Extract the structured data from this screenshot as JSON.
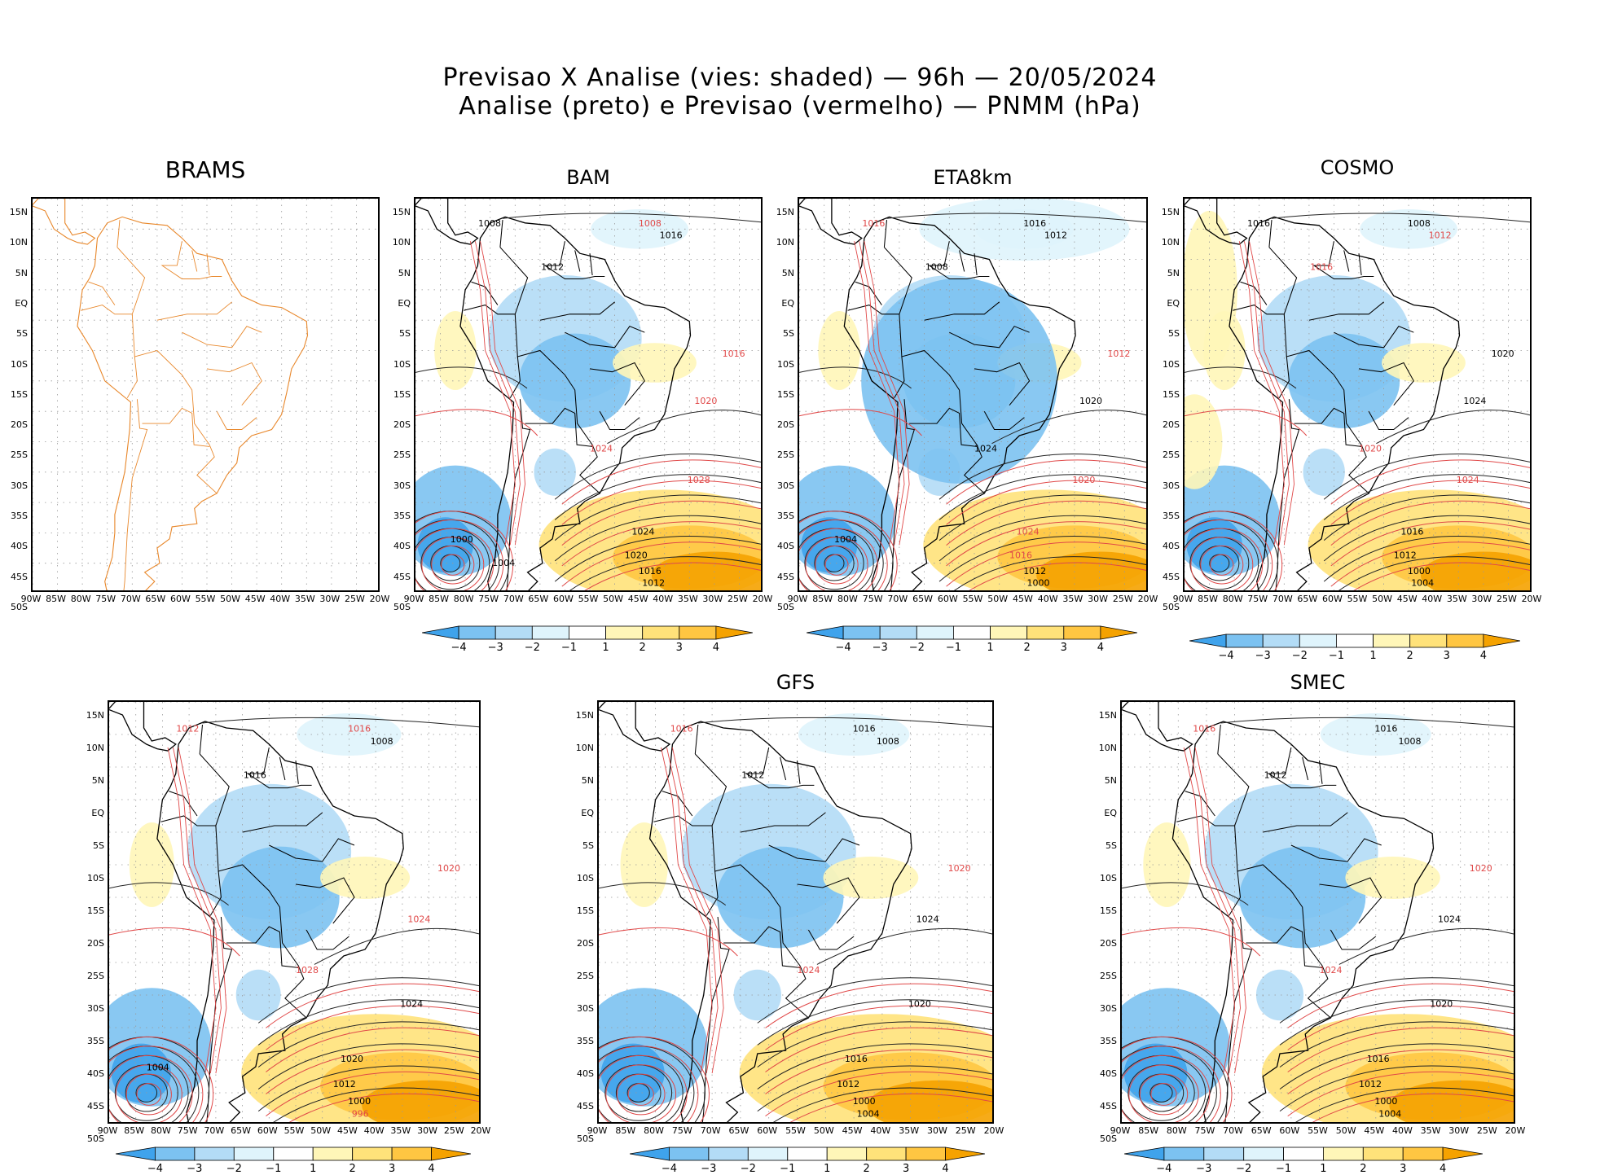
{
  "title": {
    "line1": "Previsao X Analise (vies: shaded) — 96h — 20/05/2024",
    "line2": "Analise (preto) e Previsao (vermelho) — PNMM (hPa)"
  },
  "axes": {
    "lat_labels": [
      "15N",
      "10N",
      "5N",
      "EQ",
      "5S",
      "10S",
      "15S",
      "20S",
      "25S",
      "30S",
      "35S",
      "40S",
      "45S",
      "50S"
    ],
    "lon_labels": [
      "90W",
      "85W",
      "80W",
      "75W",
      "70W",
      "65W",
      "60W",
      "55W",
      "50W",
      "45W",
      "40W",
      "35W",
      "30W",
      "25W",
      "20W"
    ]
  },
  "colorbar": {
    "labels": [
      "−4",
      "−3",
      "−2",
      "−1",
      "1",
      "2",
      "3",
      "4"
    ],
    "colors": [
      "#3fa3ec",
      "#7cc2f1",
      "#b3dcf6",
      "#dff4fc",
      "#ffffff",
      "#fff6b8",
      "#ffe27a",
      "#ffc642",
      "#f5a200"
    ]
  },
  "panels": [
    {
      "name": "BRAMS",
      "has_colorbar": false,
      "labels": []
    },
    {
      "name": "BAM",
      "has_colorbar": true,
      "labels": [
        {
          "t": "1008",
          "c": "k"
        },
        {
          "t": "1008",
          "c": "r"
        },
        {
          "t": "1016",
          "c": "k"
        },
        {
          "t": "1012",
          "c": "k"
        },
        {
          "t": "1016",
          "c": "r"
        },
        {
          "t": "1020",
          "c": "r"
        },
        {
          "t": "1024",
          "c": "r"
        },
        {
          "t": "1028",
          "c": "r"
        },
        {
          "t": "1024",
          "c": "k"
        },
        {
          "t": "1020",
          "c": "k"
        },
        {
          "t": "1016",
          "c": "k"
        },
        {
          "t": "1012",
          "c": "k"
        },
        {
          "t": "1000",
          "c": "k"
        },
        {
          "t": "1004",
          "c": "k"
        }
      ]
    },
    {
      "name": "ETA8km",
      "has_colorbar": true,
      "labels": [
        {
          "t": "1016",
          "c": "r"
        },
        {
          "t": "1016",
          "c": "k"
        },
        {
          "t": "1012",
          "c": "k"
        },
        {
          "t": "1008",
          "c": "k"
        },
        {
          "t": "1012",
          "c": "r"
        },
        {
          "t": "1020",
          "c": "k"
        },
        {
          "t": "1024",
          "c": "k"
        },
        {
          "t": "1020",
          "c": "r"
        },
        {
          "t": "1024",
          "c": "r"
        },
        {
          "t": "1016",
          "c": "r"
        },
        {
          "t": "1012",
          "c": "k"
        },
        {
          "t": "1000",
          "c": "k"
        },
        {
          "t": "1004",
          "c": "k"
        }
      ]
    },
    {
      "name": "COSMO",
      "has_colorbar": true,
      "labels": [
        {
          "t": "1016",
          "c": "k"
        },
        {
          "t": "1008",
          "c": "k"
        },
        {
          "t": "1012",
          "c": "r"
        },
        {
          "t": "1016",
          "c": "r"
        },
        {
          "t": "1020",
          "c": "k"
        },
        {
          "t": "1024",
          "c": "k"
        },
        {
          "t": "1020",
          "c": "r"
        },
        {
          "t": "1024",
          "c": "r"
        },
        {
          "t": "1016",
          "c": "k"
        },
        {
          "t": "1012",
          "c": "k"
        },
        {
          "t": "1000",
          "c": "k"
        },
        {
          "t": "1004",
          "c": "k"
        }
      ]
    },
    {
      "name": "",
      "has_colorbar": true,
      "labels": [
        {
          "t": "1012",
          "c": "r"
        },
        {
          "t": "1016",
          "c": "r"
        },
        {
          "t": "1008",
          "c": "k"
        },
        {
          "t": "1016",
          "c": "k"
        },
        {
          "t": "1020",
          "c": "r"
        },
        {
          "t": "1024",
          "c": "r"
        },
        {
          "t": "1028",
          "c": "r"
        },
        {
          "t": "1024",
          "c": "k"
        },
        {
          "t": "1020",
          "c": "k"
        },
        {
          "t": "1012",
          "c": "k"
        },
        {
          "t": "1000",
          "c": "k"
        },
        {
          "t": "996",
          "c": "r"
        },
        {
          "t": "1004",
          "c": "k"
        }
      ]
    },
    {
      "name": "GFS",
      "has_colorbar": true,
      "labels": [
        {
          "t": "1016",
          "c": "r"
        },
        {
          "t": "1016",
          "c": "k"
        },
        {
          "t": "1008",
          "c": "k"
        },
        {
          "t": "1012",
          "c": "k"
        },
        {
          "t": "1020",
          "c": "r"
        },
        {
          "t": "1024",
          "c": "k"
        },
        {
          "t": "1024",
          "c": "r"
        },
        {
          "t": "1020",
          "c": "k"
        },
        {
          "t": "1016",
          "c": "k"
        },
        {
          "t": "1012",
          "c": "k"
        },
        {
          "t": "1000",
          "c": "k"
        },
        {
          "t": "1004",
          "c": "k"
        }
      ]
    },
    {
      "name": "SMEC",
      "has_colorbar": true,
      "labels": [
        {
          "t": "1016",
          "c": "r"
        },
        {
          "t": "1016",
          "c": "k"
        },
        {
          "t": "1008",
          "c": "k"
        },
        {
          "t": "1012",
          "c": "k"
        },
        {
          "t": "1020",
          "c": "r"
        },
        {
          "t": "1024",
          "c": "k"
        },
        {
          "t": "1024",
          "c": "r"
        },
        {
          "t": "1020",
          "c": "k"
        },
        {
          "t": "1016",
          "c": "k"
        },
        {
          "t": "1012",
          "c": "k"
        },
        {
          "t": "1000",
          "c": "k"
        },
        {
          "t": "1004",
          "c": "k"
        }
      ]
    }
  ]
}
